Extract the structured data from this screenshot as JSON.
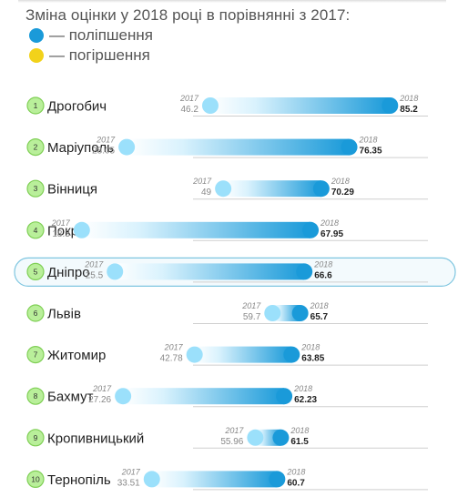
{
  "title": "Зміна оцінки у 2018 році в порівнянні з 2017:",
  "legend": [
    {
      "label": "— поліпшення",
      "color": "#1a9ad9"
    },
    {
      "label": "— погіршення",
      "color": "#f2d21a"
    }
  ],
  "colors": {
    "improve": "#1a9ad9",
    "start": "#9be0fb",
    "rank_fill": "#b9ef9a",
    "rank_stroke": "#7fcf55",
    "highlight_stroke": "#7fc6e0",
    "highlight_fill": "#f3fafd"
  },
  "highlight_rank": 5,
  "chart_data": {
    "type": "dumbbell",
    "series": [
      {
        "name": "2017",
        "key": "v2017"
      },
      {
        "name": "2018",
        "key": "v2018"
      }
    ],
    "xlim": [
      0,
      100
    ],
    "rows": [
      {
        "rank": "1",
        "city": "Дрогобич",
        "v2017": 46.2,
        "v2018": 85.2,
        "v2017_label": "46.2",
        "v2018_label": "85.2",
        "year_a": "2017",
        "year_b": "2018"
      },
      {
        "rank": "2",
        "city": "Маріуполь",
        "v2017": 28.05,
        "v2018": 76.35,
        "v2017_label": "28.05",
        "v2018_label": "76.35",
        "year_a": "2017",
        "year_b": "2018"
      },
      {
        "rank": "3",
        "city": "Вінниця",
        "v2017": 49,
        "v2018": 70.29,
        "v2017_label": "49",
        "v2018_label": "70.29",
        "year_a": "2017",
        "year_b": "2018"
      },
      {
        "rank": "4",
        "city": "Покров",
        "v2017": 18.3,
        "v2018": 67.95,
        "v2017_label": "18.3",
        "v2018_label": "67.95",
        "year_a": "2017",
        "year_b": "2018"
      },
      {
        "rank": "5",
        "city": "Дніпро",
        "v2017": 25.5,
        "v2018": 66.6,
        "v2017_label": "25.5",
        "v2018_label": "66.6",
        "year_a": "2017",
        "year_b": "2018"
      },
      {
        "rank": "6",
        "city": "Львів",
        "v2017": 59.7,
        "v2018": 65.7,
        "v2017_label": "59.7",
        "v2018_label": "65.7",
        "year_a": "2017",
        "year_b": "2018"
      },
      {
        "rank": "7",
        "city": "Житомир",
        "v2017": 42.78,
        "v2018": 63.85,
        "v2017_label": "42.78",
        "v2018_label": "63.85",
        "year_a": "2017",
        "year_b": "2018"
      },
      {
        "rank": "8",
        "city": "Бахмут",
        "v2017": 27.26,
        "v2018": 62.23,
        "v2017_label": "27.26",
        "v2018_label": "62.23",
        "year_a": "2017",
        "year_b": "2018"
      },
      {
        "rank": "9",
        "city": "Кропивницький",
        "v2017": 55.96,
        "v2018": 61.5,
        "v2017_label": "55.96",
        "v2018_label": "61.5",
        "year_a": "2017",
        "year_b": "2018"
      },
      {
        "rank": "10",
        "city": "Тернопіль",
        "v2017": 33.51,
        "v2018": 60.7,
        "v2017_label": "33.51",
        "v2018_label": "60.7",
        "year_a": "2017",
        "year_b": "2018"
      }
    ]
  }
}
